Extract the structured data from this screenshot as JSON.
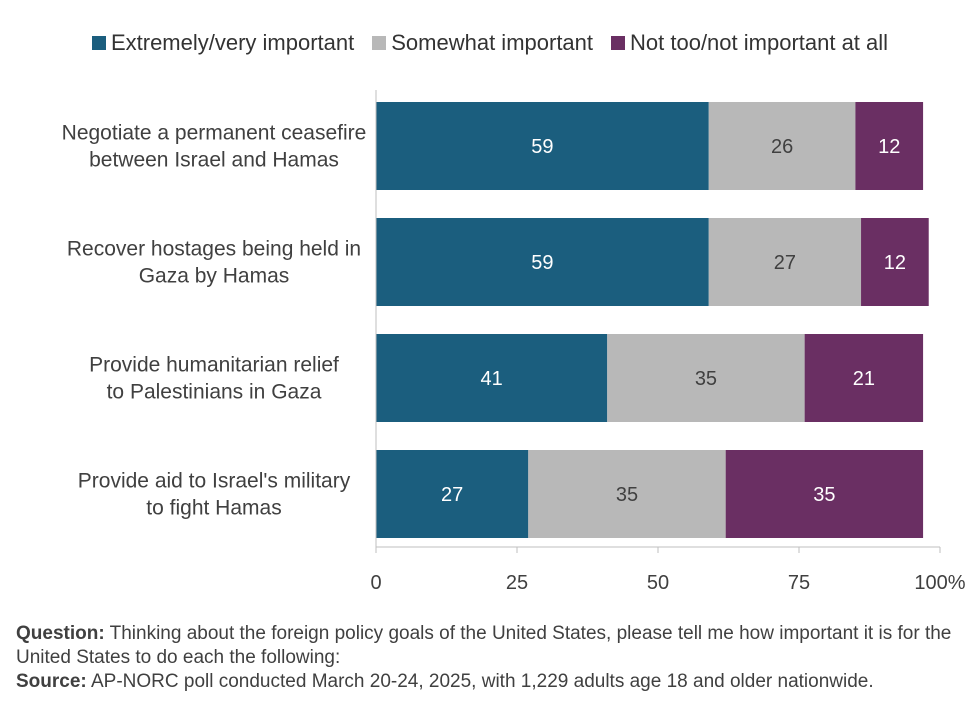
{
  "chart_data": {
    "type": "bar",
    "orientation": "horizontal",
    "stacked": true,
    "categories": [
      [
        "Negotiate a permanent ceasefire",
        "between Israel and Hamas"
      ],
      [
        "Recover hostages being held in",
        "Gaza by Hamas"
      ],
      [
        "Provide humanitarian relief",
        "to Palestinians in Gaza"
      ],
      [
        "Provide aid to Israel's military",
        "to fight Hamas"
      ]
    ],
    "series": [
      {
        "name": "Extremely/very important",
        "color": "#1b5e7e",
        "label_color": "#ffffff",
        "values": [
          59,
          59,
          41,
          27
        ]
      },
      {
        "name": "Somewhat important",
        "color": "#b8b8b8",
        "label_color": "#404040",
        "values": [
          26,
          27,
          35,
          35
        ]
      },
      {
        "name": "Not too/not important at all",
        "color": "#6a2f63",
        "label_color": "#ffffff",
        "values": [
          12,
          12,
          21,
          35
        ]
      }
    ],
    "xlim": [
      0,
      100
    ],
    "xticks": [
      0,
      25,
      50,
      75,
      100
    ],
    "xtick_labels": [
      "0",
      "25",
      "50",
      "75",
      "100%"
    ],
    "grid": false,
    "legend_position": "top"
  },
  "footnote": {
    "question_label": "Question:",
    "question_text": " Thinking about the foreign policy goals of the United States, please tell me how important it is for the United States to do each the following:",
    "source_label": "Source:",
    "source_text": " AP-NORC poll conducted March 20-24, 2025, with 1,229 adults age 18 and older nationwide."
  }
}
